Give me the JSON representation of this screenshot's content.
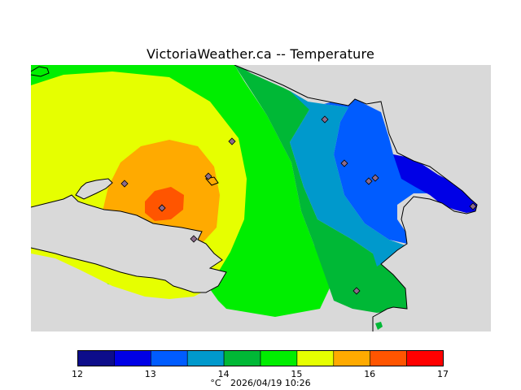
{
  "title": "VictoriaWeather.ca -- Temperature",
  "footer": {
    "unit": "°C",
    "timestamp": "2026/04/19 10:26"
  },
  "legend": {
    "ticks": [
      "12",
      "13",
      "14",
      "15",
      "16",
      "17"
    ],
    "colors": [
      "#0d0d8a",
      "#0000e6",
      "#005cff",
      "#0099cc",
      "#00b836",
      "#00ee00",
      "#e6ff00",
      "#ffaa00",
      "#ff5500",
      "#ff0000"
    ]
  },
  "map": {
    "land_color": "#d9d9d9",
    "station_marker_color": "#8c6b8c"
  }
}
